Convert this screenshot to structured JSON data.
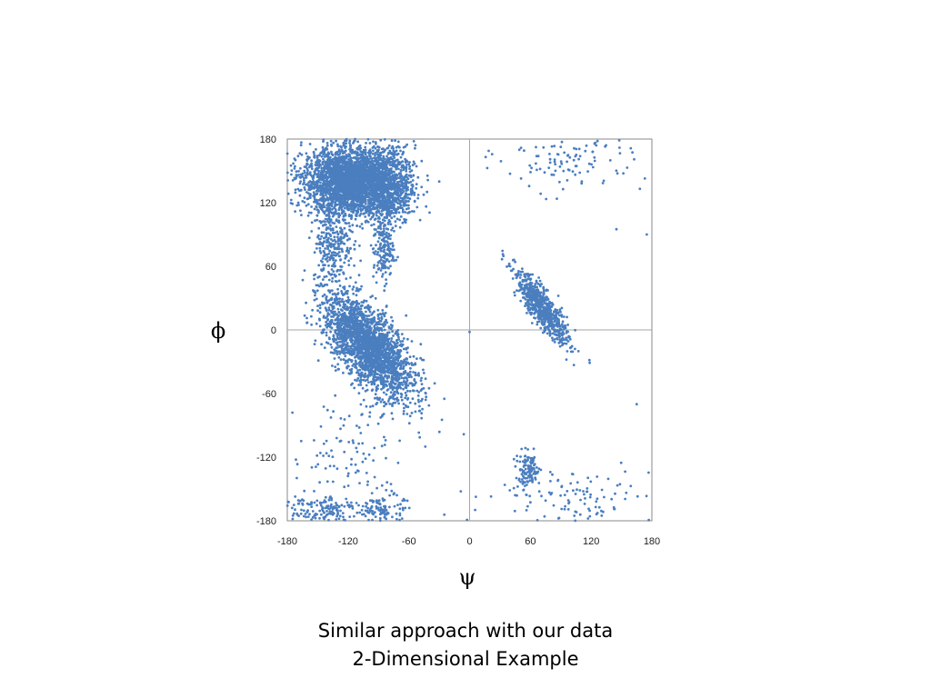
{
  "caption": {
    "line1": "Similar approach with our data",
    "line2": "2-Dimensional Example"
  },
  "chart_data": {
    "type": "scatter",
    "title": "",
    "xlabel": "ψ",
    "ylabel": "ϕ",
    "xlim": [
      -180,
      180
    ],
    "ylim": [
      -180,
      180
    ],
    "xticks": [
      "-180",
      "-120",
      "-60",
      "0",
      "60",
      "120",
      "180"
    ],
    "yticks": [
      "180",
      "120",
      "60",
      "0",
      "-60",
      "-120",
      "-180"
    ],
    "grid": false,
    "zero_lines": true,
    "point_color": "#4a7ebf",
    "clusters": [
      {
        "region": "upper-left dense",
        "cx": -120,
        "cy": 140,
        "sx": 22,
        "sy": 16,
        "rho": 0.0,
        "n": 2600
      },
      {
        "region": "upper-left lobe",
        "cx": -82,
        "cy": 135,
        "sx": 14,
        "sy": 18,
        "rho": 0.0,
        "n": 900
      },
      {
        "region": "left bridge",
        "cx": -135,
        "cy": 80,
        "sx": 10,
        "sy": 18,
        "rho": 0.0,
        "n": 260
      },
      {
        "region": "left bridge 2",
        "cx": -85,
        "cy": 75,
        "sx": 5,
        "sy": 15,
        "rho": 0.0,
        "n": 160
      },
      {
        "region": "alpha region",
        "cx": -100,
        "cy": -15,
        "sx": 22,
        "sy": 24,
        "rho": -0.65,
        "n": 2300
      },
      {
        "region": "right diagonal",
        "cx": 72,
        "cy": 20,
        "sx": 13,
        "sy": 17,
        "rho": -0.85,
        "n": 700
      },
      {
        "region": "right bottom",
        "cx": 58,
        "cy": -132,
        "sx": 6,
        "sy": 8,
        "rho": 0.0,
        "n": 110
      },
      {
        "region": "right bottom sparse",
        "cx": 100,
        "cy": -160,
        "sx": 40,
        "sy": 15,
        "rho": 0.0,
        "n": 130
      },
      {
        "region": "bottom-left",
        "cx": -150,
        "cy": -170,
        "sx": 20,
        "sy": 8,
        "rho": 0.0,
        "n": 160
      },
      {
        "region": "bottom-left 2",
        "cx": -85,
        "cy": -170,
        "sx": 10,
        "sy": 8,
        "rho": 0.0,
        "n": 110
      },
      {
        "region": "upper-right sparse",
        "cx": 100,
        "cy": 160,
        "sx": 35,
        "sy": 15,
        "rho": 0.0,
        "n": 110
      },
      {
        "region": "lower-left sparse",
        "cx": -120,
        "cy": -115,
        "sx": 30,
        "sy": 30,
        "rho": 0.0,
        "n": 110
      }
    ],
    "extra_points": [
      [
        0,
        -2
      ],
      [
        -40,
        -55
      ],
      [
        -25,
        -65
      ],
      [
        -30,
        140
      ],
      [
        40,
        60
      ],
      [
        145,
        95
      ],
      [
        175,
        90
      ],
      [
        165,
        -70
      ]
    ]
  }
}
